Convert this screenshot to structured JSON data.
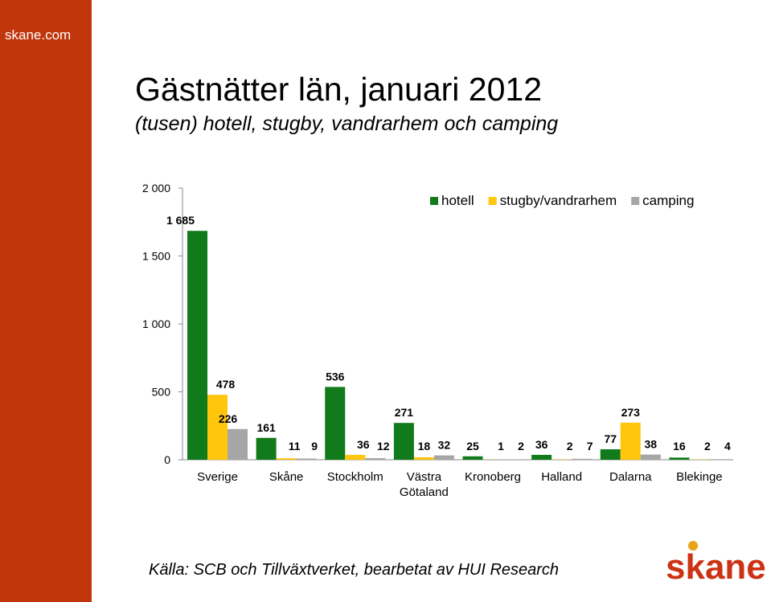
{
  "site": "skane.com",
  "title": "Gästnätter län, januari 2012",
  "subtitle": "(tusen) hotell, stugby, vandrarhem och camping",
  "source": "Källa: SCB och Tillväxtverket, bearbetat av HUI Research",
  "logo_text": "skane",
  "colors": {
    "sidebar": "#c1350b",
    "logo": "#cc3314",
    "logo_dot": "#e8a317"
  },
  "chart_data": {
    "type": "bar",
    "categories": [
      [
        "Sverige"
      ],
      [
        "Skåne"
      ],
      [
        "Stockholm"
      ],
      [
        "Västra",
        "Götaland"
      ],
      [
        "Kronoberg"
      ],
      [
        "Halland"
      ],
      [
        "Dalarna"
      ],
      [
        "Blekinge"
      ]
    ],
    "series": [
      {
        "name": "hotell",
        "color": "#117a1a",
        "values": [
          1685,
          161,
          536,
          271,
          25,
          36,
          77,
          16
        ],
        "labels": [
          "1 685",
          "161",
          "536",
          "271",
          "25",
          "36",
          "77",
          "16"
        ]
      },
      {
        "name": "stugby/vandrarhem",
        "color": "#ffc60b",
        "values": [
          478,
          11,
          36,
          18,
          1,
          2,
          273,
          2
        ],
        "labels": [
          "478",
          "11",
          "36",
          "18",
          "1",
          "2",
          "273",
          "2"
        ]
      },
      {
        "name": "camping",
        "color": "#a6a6a6",
        "values": [
          226,
          9,
          12,
          32,
          2,
          7,
          38,
          4
        ],
        "labels": [
          "226",
          "9",
          "12",
          "32",
          "2",
          "7",
          "38",
          "4"
        ]
      }
    ],
    "ylim": [
      0,
      2000
    ],
    "yticks": [
      0,
      500,
      1000,
      1500,
      2000
    ],
    "ytick_labels": [
      "0",
      "500",
      "1 000",
      "1 500",
      "2 000"
    ],
    "legend": "top-right",
    "grid": false
  }
}
